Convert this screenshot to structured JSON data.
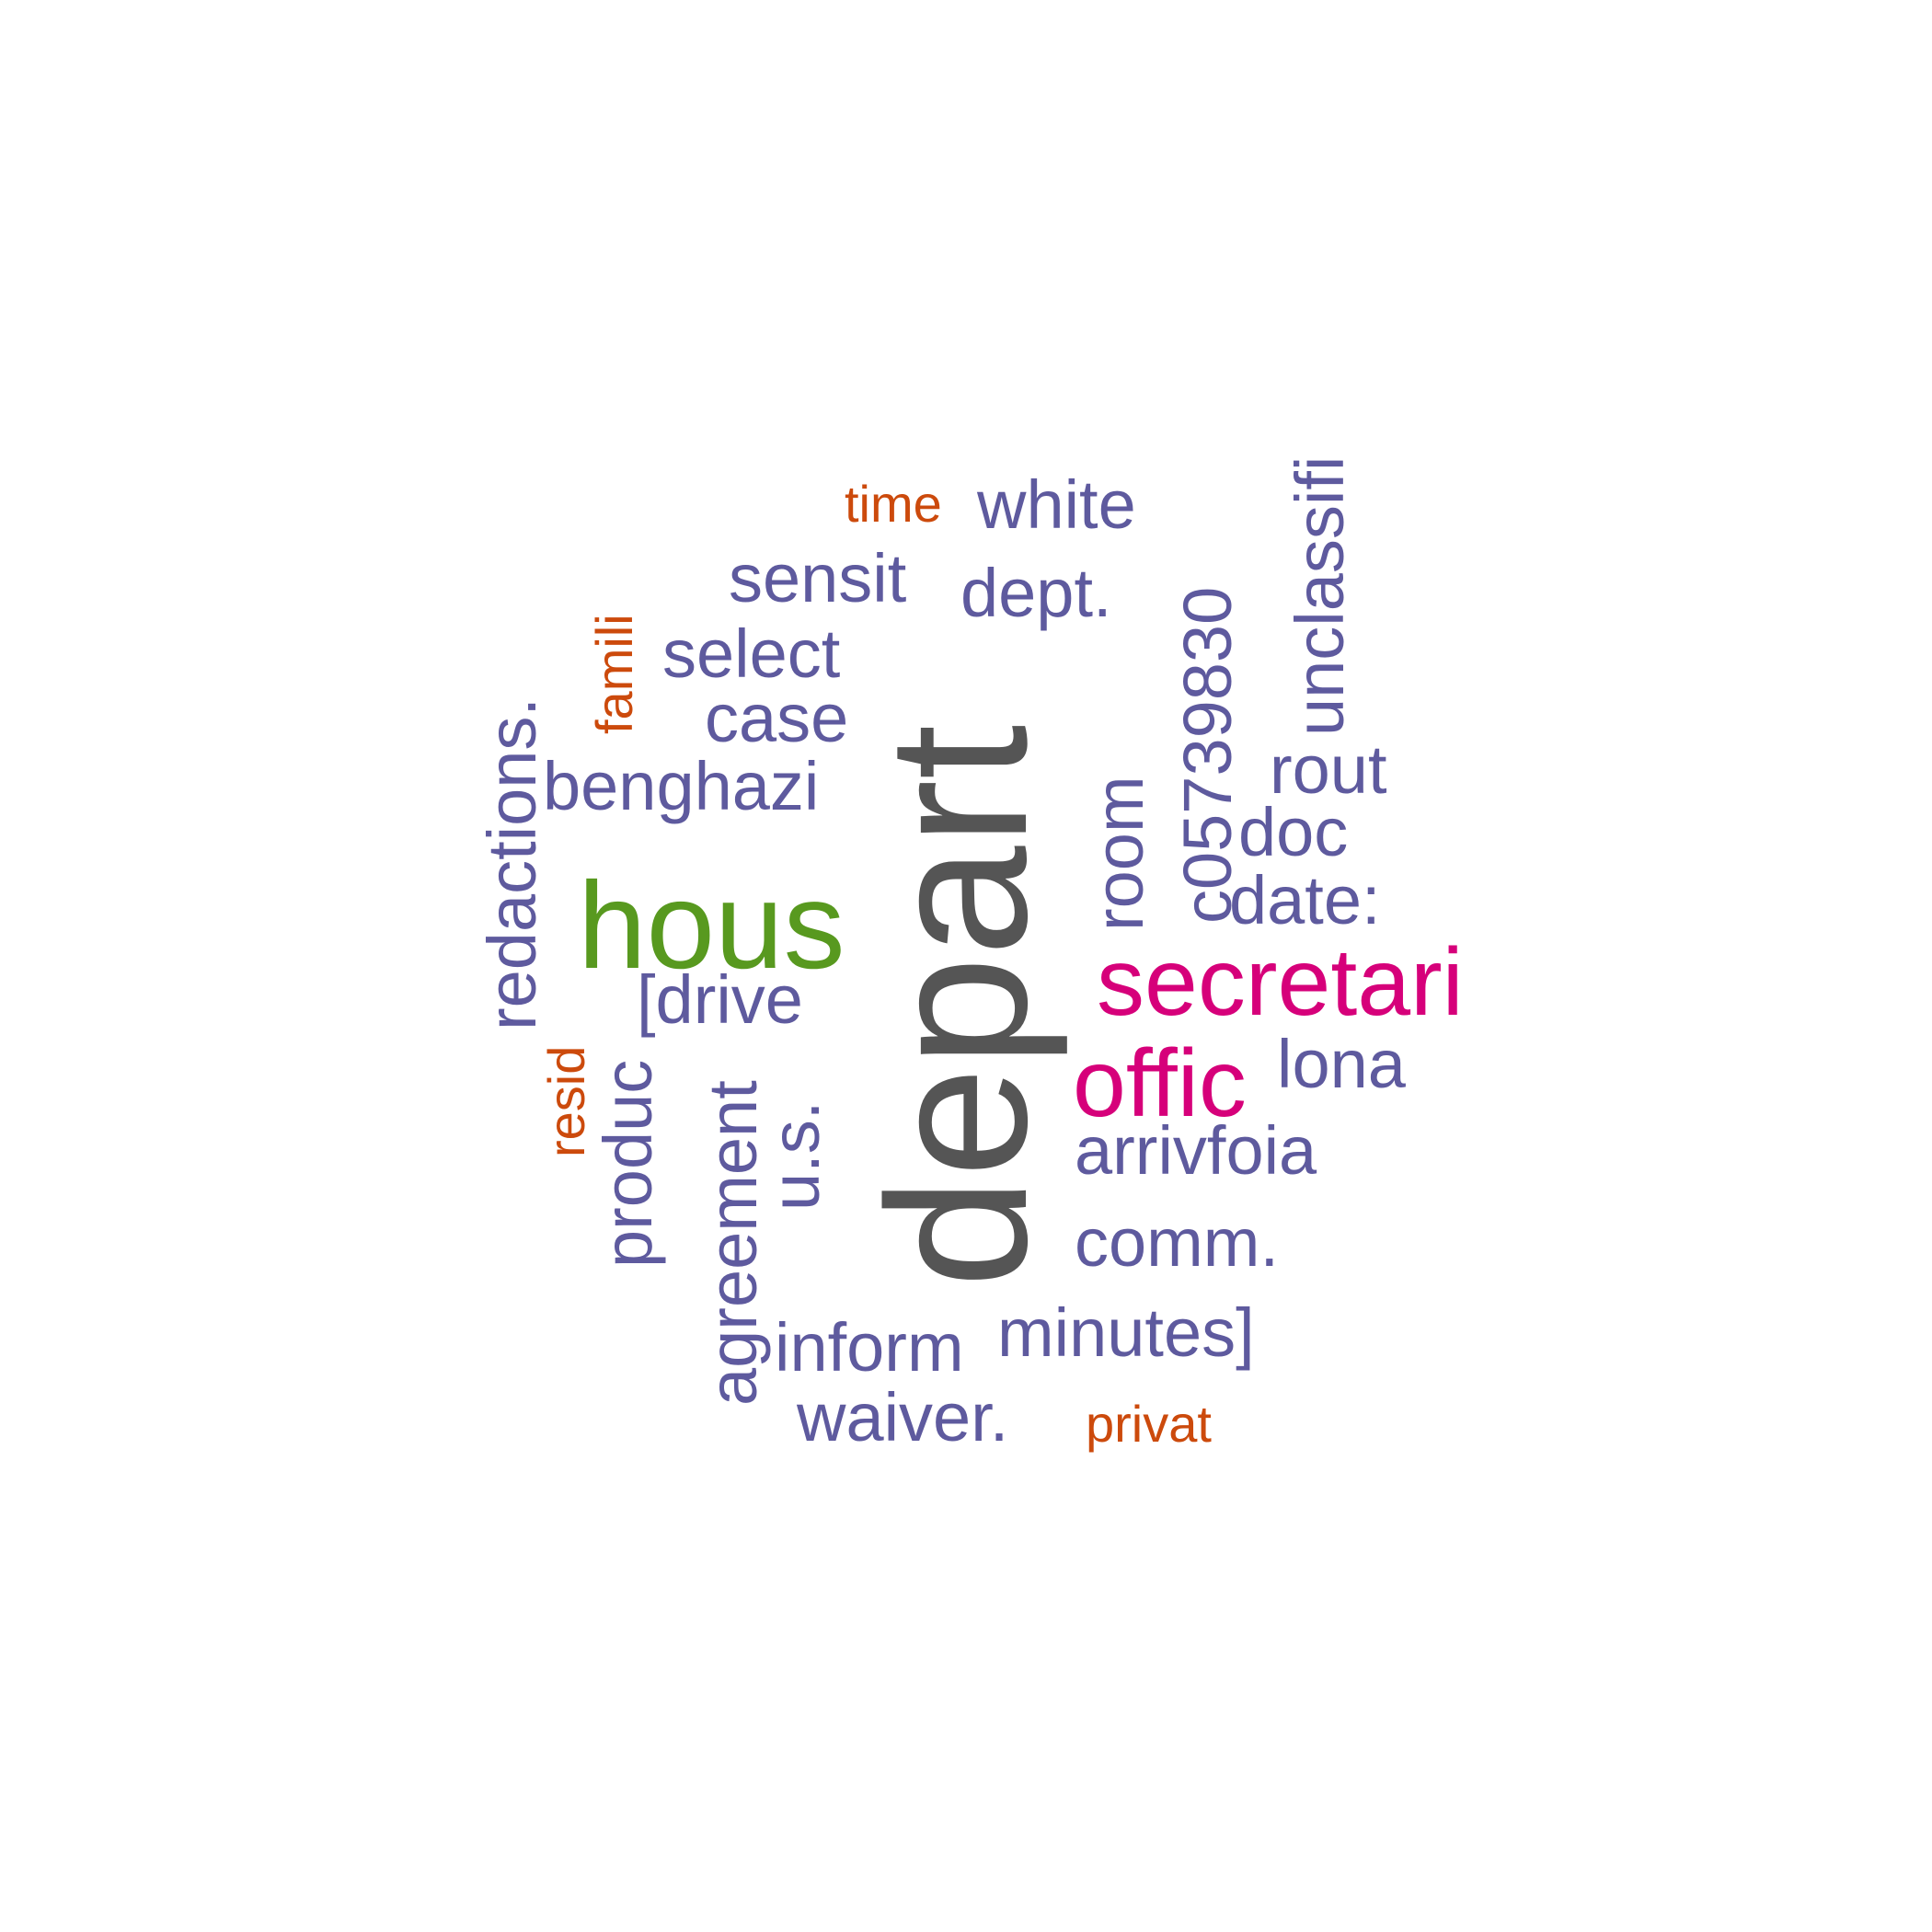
{
  "colors": {
    "dark_gray": "#555555",
    "purple": "#5E5A9E",
    "green": "#58991F",
    "magenta": "#D6007A",
    "orange": "#CC4A0C"
  },
  "words": {
    "depart": "depart",
    "hous": "hous",
    "secretari": "secretari",
    "offic": "offic",
    "time": "time",
    "white": "white",
    "sensit": "sensit",
    "dept": "dept.",
    "select": "select",
    "case": "case",
    "benghazi": "benghazi",
    "rout": "rout",
    "doc": "doc",
    "date": "date:",
    "drive": "[drive",
    "lona": "lona",
    "arrivfoia": "arrivfoia",
    "comm": "comm.",
    "minutes": "minutes]",
    "inform": "inform",
    "waiver": "waiver.",
    "privat": "privat",
    "famili": "famili",
    "redactions": "redactions.",
    "resid": "resid",
    "produc": "produc",
    "agreement": "agreement",
    "us": "u.s.",
    "room": "room",
    "c05739830": "c05739830",
    "unclassifi": "unclassifi"
  }
}
